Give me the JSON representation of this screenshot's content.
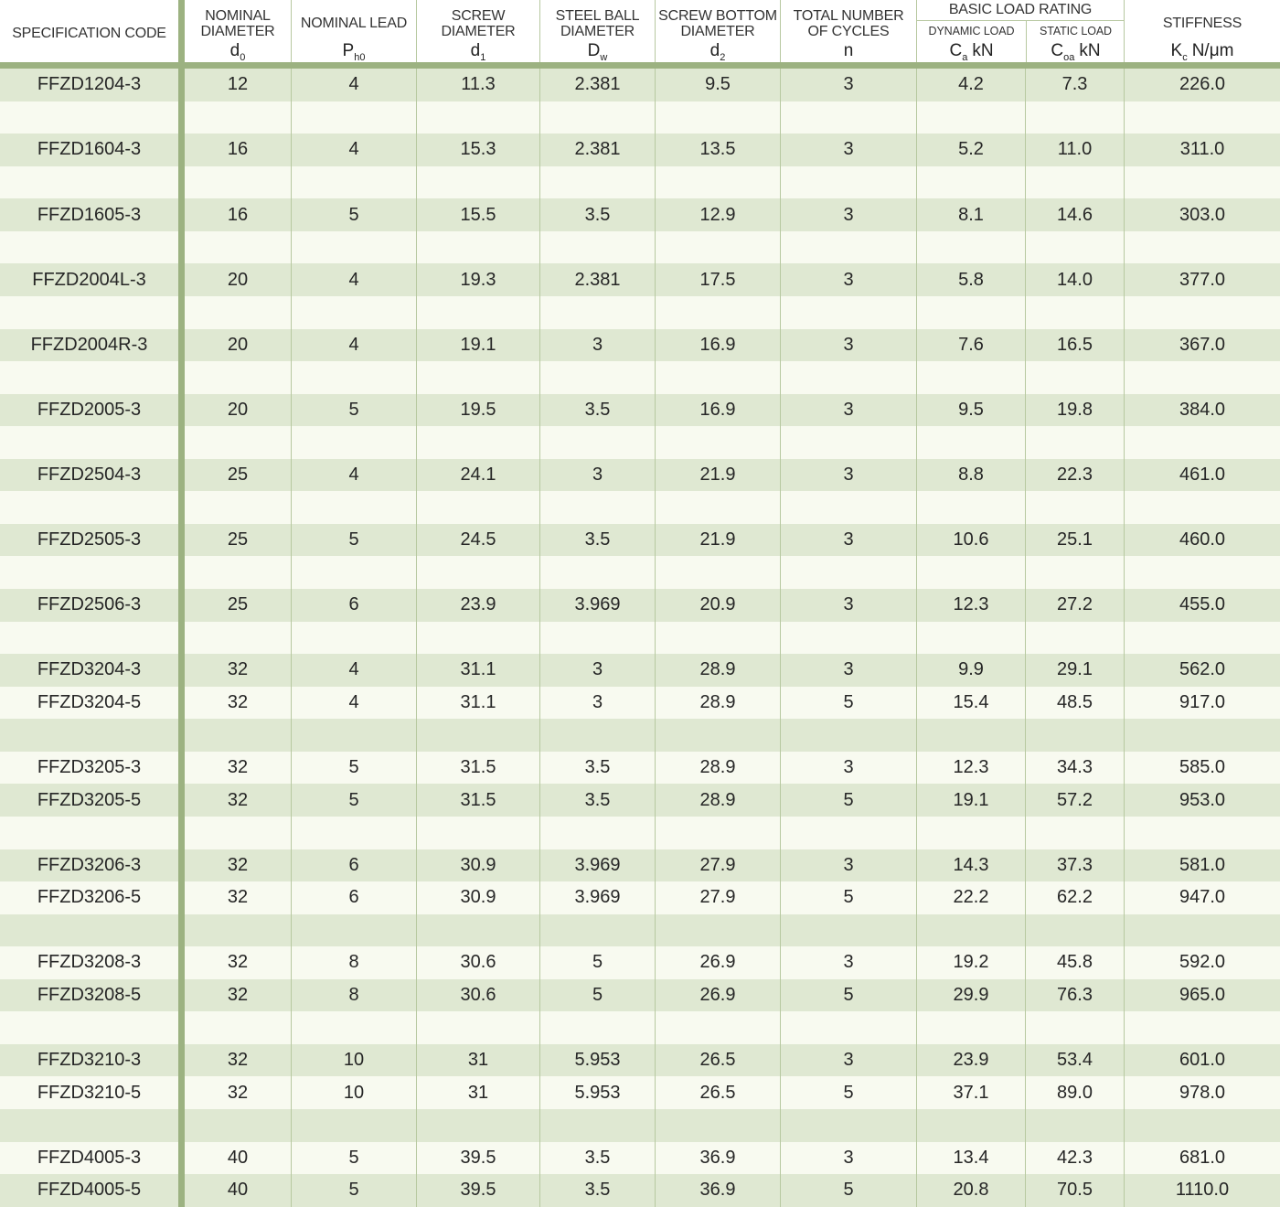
{
  "colors": {
    "row_green": "#dfe8d2",
    "row_white": "#f8faf0",
    "thick_line": "#9cb281",
    "thin_line": "#b7c8a0",
    "text": "#262626",
    "header_text": "#333333"
  },
  "table": {
    "header": {
      "spec_label": "SPECIFICATION CODE",
      "cols": [
        {
          "label": "NOMINAL DIAMETER",
          "sym": "d",
          "sub": "0",
          "unit": ""
        },
        {
          "label": "NOMINAL LEAD",
          "sym": "P",
          "sub": "h0",
          "unit": ""
        },
        {
          "label": "SCREW DIAMETER",
          "sym": "d",
          "sub": "1",
          "unit": ""
        },
        {
          "label": "STEEL BALL DIAMETER",
          "sym": "D",
          "sub": "w",
          "unit": ""
        },
        {
          "label": "SCREW BOTTOM DIAMETER",
          "sym": "d",
          "sub": "2",
          "unit": ""
        },
        {
          "label": "TOTAL NUMBER OF CYCLES",
          "sym": "n",
          "sub": "",
          "unit": ""
        }
      ],
      "group": {
        "label": "BASIC LOAD RATING",
        "sub": [
          {
            "label": "DYNAMIC LOAD",
            "sym": "C",
            "sub": "a",
            "unit": "kN"
          },
          {
            "label": "STATIC LOAD",
            "sym": "C",
            "sub": "oa",
            "unit": "kN"
          }
        ]
      },
      "stiffness": {
        "label": "STIFFNESS",
        "sym": "K",
        "sub": "c",
        "unit": "N/μm"
      }
    },
    "rows": [
      [
        "FFZD1204-3",
        "12",
        "4",
        "11.3",
        "2.381",
        "9.5",
        "3",
        "4.2",
        "7.3",
        "226.0"
      ],
      null,
      [
        "FFZD1604-3",
        "16",
        "4",
        "15.3",
        "2.381",
        "13.5",
        "3",
        "5.2",
        "11.0",
        "311.0"
      ],
      null,
      [
        "FFZD1605-3",
        "16",
        "5",
        "15.5",
        "3.5",
        "12.9",
        "3",
        "8.1",
        "14.6",
        "303.0"
      ],
      null,
      [
        "FFZD2004L-3",
        "20",
        "4",
        "19.3",
        "2.381",
        "17.5",
        "3",
        "5.8",
        "14.0",
        "377.0"
      ],
      null,
      [
        "FFZD2004R-3",
        "20",
        "4",
        "19.1",
        "3",
        "16.9",
        "3",
        "7.6",
        "16.5",
        "367.0"
      ],
      null,
      [
        "FFZD2005-3",
        "20",
        "5",
        "19.5",
        "3.5",
        "16.9",
        "3",
        "9.5",
        "19.8",
        "384.0"
      ],
      null,
      [
        "FFZD2504-3",
        "25",
        "4",
        "24.1",
        "3",
        "21.9",
        "3",
        "8.8",
        "22.3",
        "461.0"
      ],
      null,
      [
        "FFZD2505-3",
        "25",
        "5",
        "24.5",
        "3.5",
        "21.9",
        "3",
        "10.6",
        "25.1",
        "460.0"
      ],
      null,
      [
        "FFZD2506-3",
        "25",
        "6",
        "23.9",
        "3.969",
        "20.9",
        "3",
        "12.3",
        "27.2",
        "455.0"
      ],
      null,
      [
        "FFZD3204-3",
        "32",
        "4",
        "31.1",
        "3",
        "28.9",
        "3",
        "9.9",
        "29.1",
        "562.0"
      ],
      [
        "FFZD3204-5",
        "32",
        "4",
        "31.1",
        "3",
        "28.9",
        "5",
        "15.4",
        "48.5",
        "917.0"
      ],
      null,
      [
        "FFZD3205-3",
        "32",
        "5",
        "31.5",
        "3.5",
        "28.9",
        "3",
        "12.3",
        "34.3",
        "585.0"
      ],
      [
        "FFZD3205-5",
        "32",
        "5",
        "31.5",
        "3.5",
        "28.9",
        "5",
        "19.1",
        "57.2",
        "953.0"
      ],
      null,
      [
        "FFZD3206-3",
        "32",
        "6",
        "30.9",
        "3.969",
        "27.9",
        "3",
        "14.3",
        "37.3",
        "581.0"
      ],
      [
        "FFZD3206-5",
        "32",
        "6",
        "30.9",
        "3.969",
        "27.9",
        "5",
        "22.2",
        "62.2",
        "947.0"
      ],
      null,
      [
        "FFZD3208-3",
        "32",
        "8",
        "30.6",
        "5",
        "26.9",
        "3",
        "19.2",
        "45.8",
        "592.0"
      ],
      [
        "FFZD3208-5",
        "32",
        "8",
        "30.6",
        "5",
        "26.9",
        "5",
        "29.9",
        "76.3",
        "965.0"
      ],
      null,
      [
        "FFZD3210-3",
        "32",
        "10",
        "31",
        "5.953",
        "26.5",
        "3",
        "23.9",
        "53.4",
        "601.0"
      ],
      [
        "FFZD3210-5",
        "32",
        "10",
        "31",
        "5.953",
        "26.5",
        "5",
        "37.1",
        "89.0",
        "978.0"
      ],
      null,
      [
        "FFZD4005-3",
        "40",
        "5",
        "39.5",
        "3.5",
        "36.9",
        "3",
        "13.4",
        "42.3",
        "681.0"
      ],
      [
        "FFZD4005-5",
        "40",
        "5",
        "39.5",
        "3.5",
        "36.9",
        "5",
        "20.8",
        "70.5",
        "1110.0"
      ]
    ]
  }
}
